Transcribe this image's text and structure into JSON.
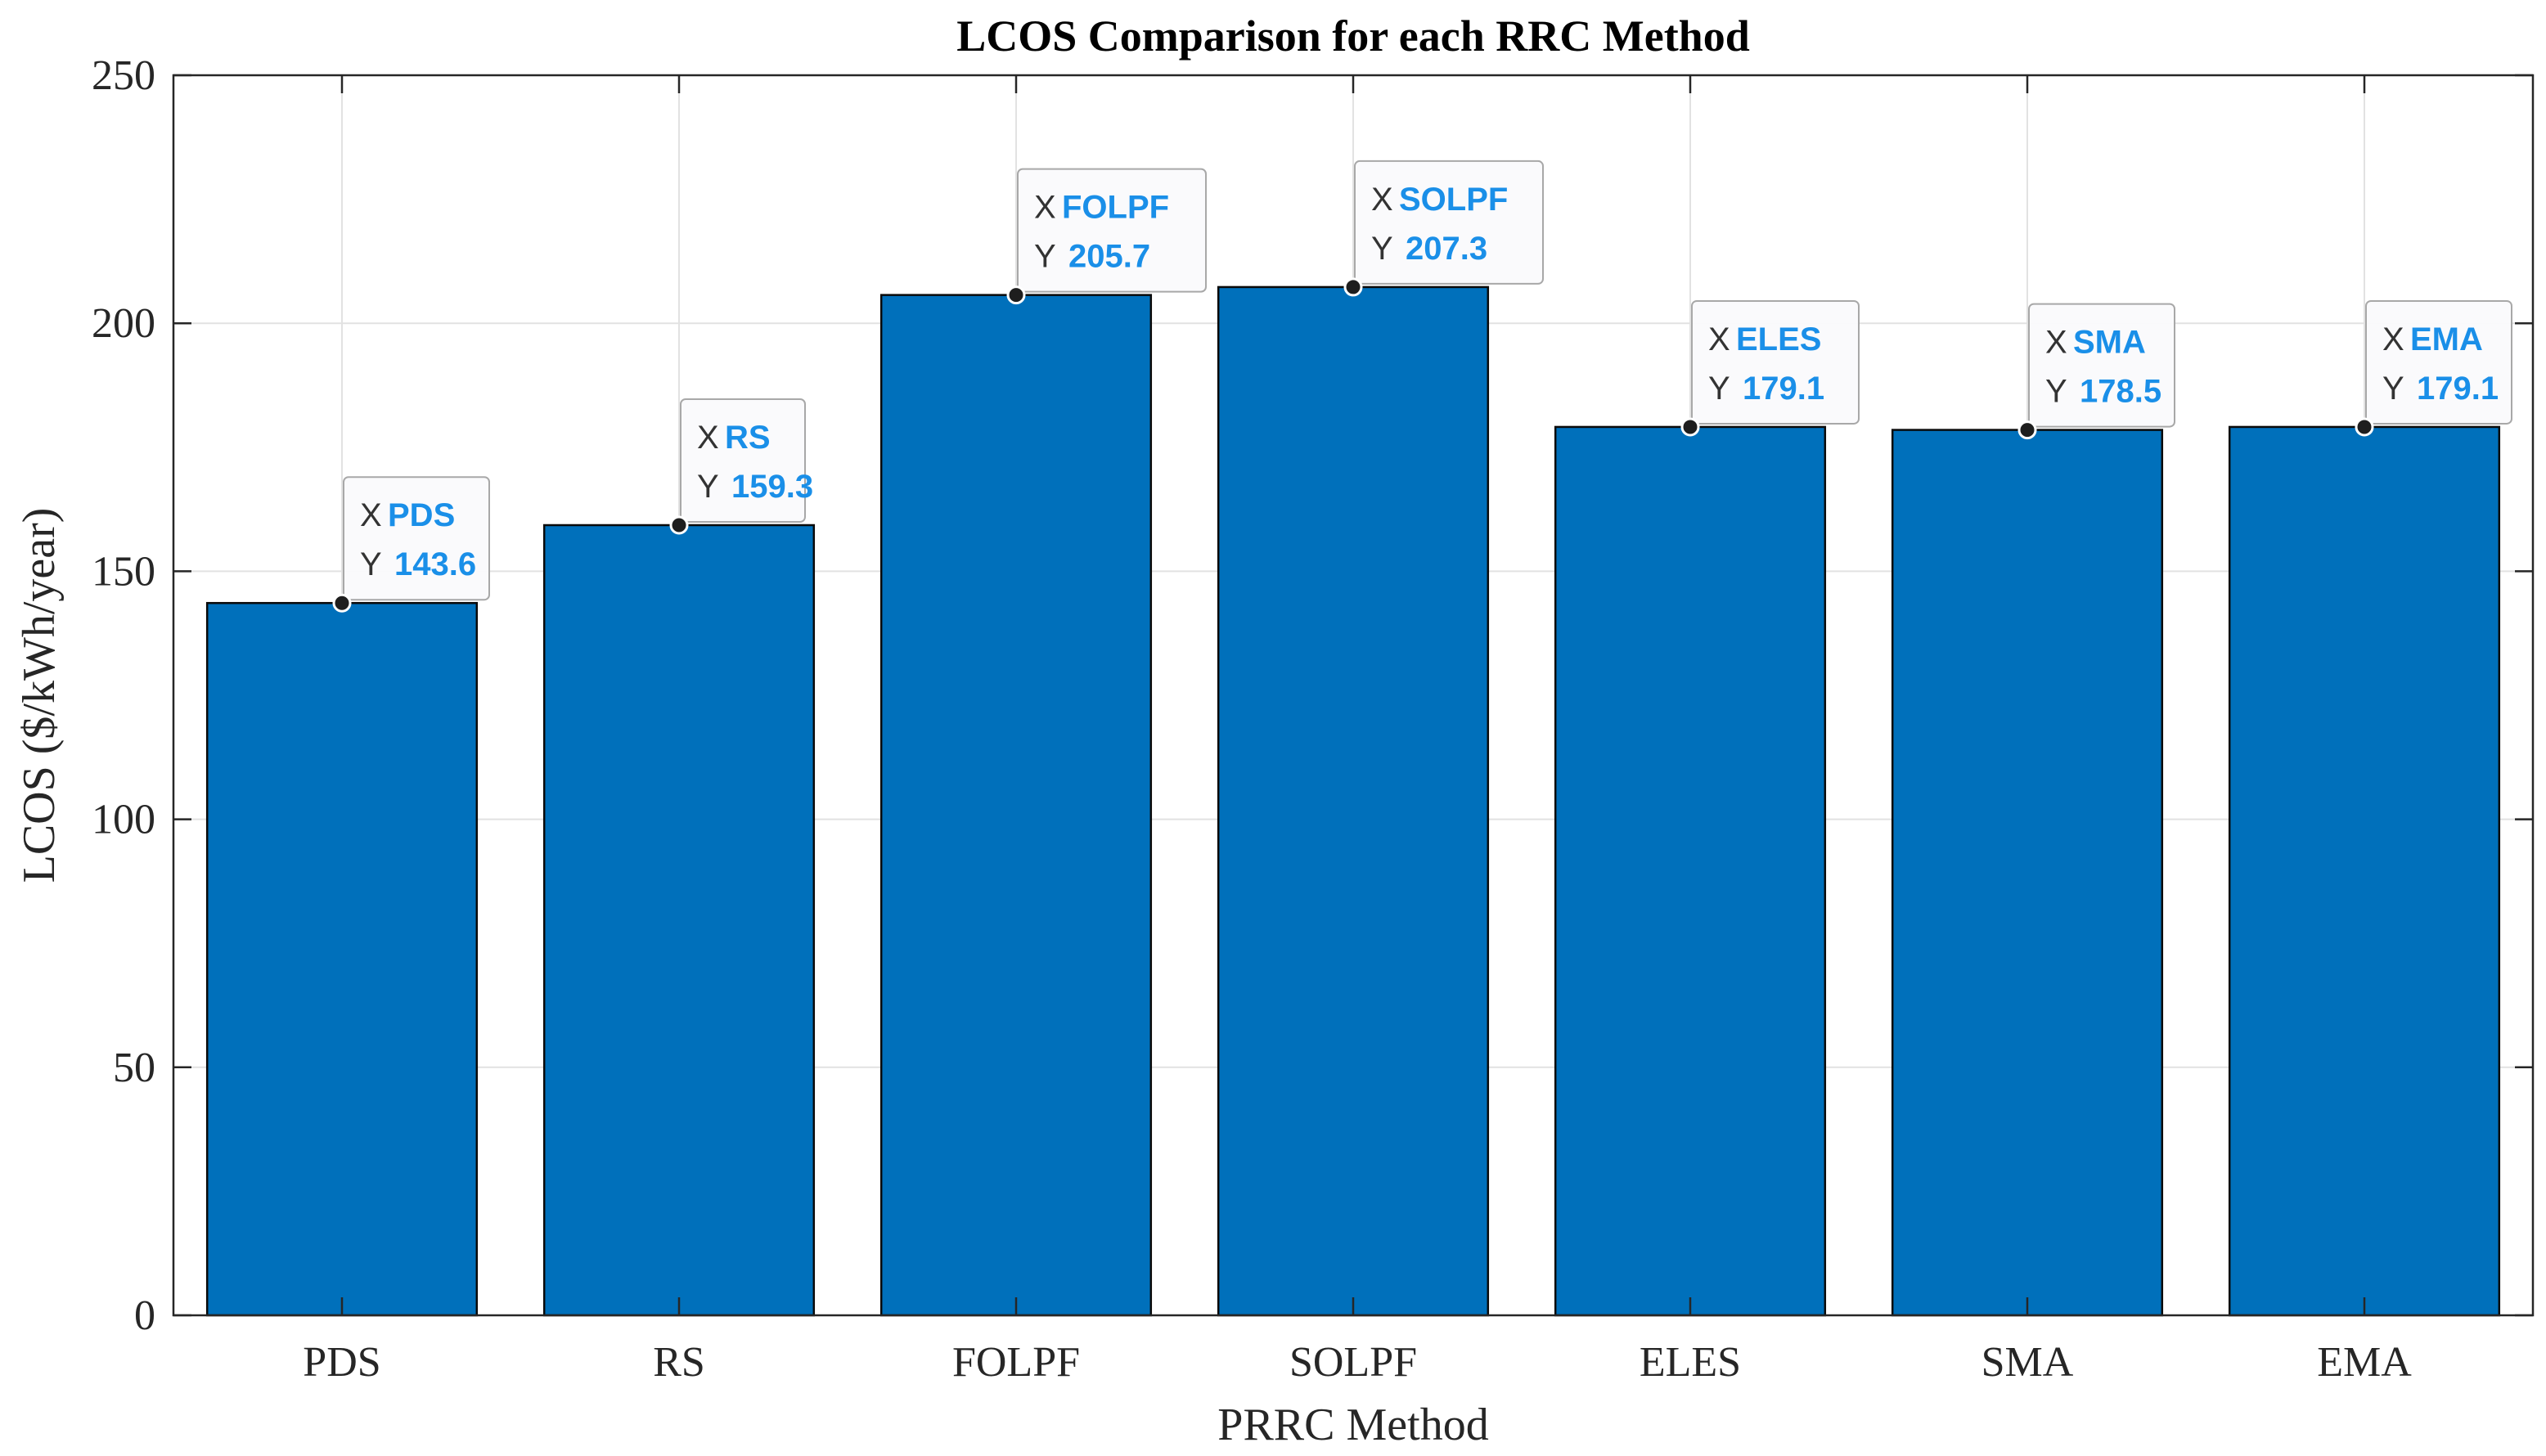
{
  "chart_data": {
    "type": "bar",
    "title": "LCOS Comparison for each RRC Method",
    "xlabel": "PRRC Method",
    "ylabel": "LCOS ($/kWh/year)",
    "categories": [
      "PDS",
      "RS",
      "FOLPF",
      "SOLPF",
      "ELES",
      "SMA",
      "EMA"
    ],
    "values": [
      143.6,
      159.3,
      205.7,
      207.3,
      179.1,
      178.5,
      179.1
    ],
    "value_labels": [
      "143.6",
      "159.3",
      "205.7",
      "207.3",
      "179.1",
      "178.5",
      "179.1"
    ],
    "ylim": [
      0,
      250
    ],
    "yticks": [
      0,
      50,
      100,
      150,
      200,
      250
    ],
    "ytick_labels": [
      "0",
      "50",
      "100",
      "150",
      "200",
      "250"
    ],
    "grid": true,
    "bar_color": "#0070bb",
    "datatip": {
      "x_prefix": "X",
      "y_prefix": "Y",
      "value_color": "#1a8fe8"
    }
  }
}
